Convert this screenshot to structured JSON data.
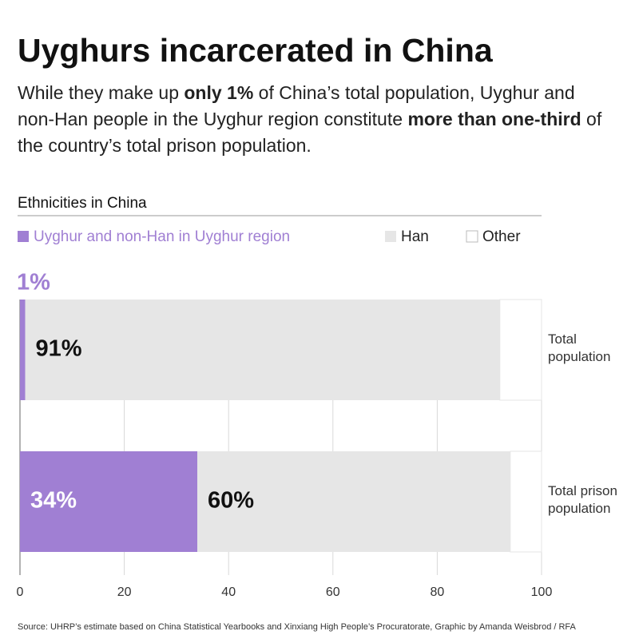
{
  "chart_data": {
    "type": "stacked_barh",
    "title": "Uyghurs incarcerated in China",
    "subtitle": [
      {
        "text": "While they make up ",
        "bold": false
      },
      {
        "text": "only 1%",
        "bold": true
      },
      {
        "text": " of China’s total population, Uyghur and non-Han people in the Uyghur region constitute ",
        "bold": false
      },
      {
        "text": "more than one-third",
        "bold": true
      },
      {
        "text": " of the country’s total prison population.",
        "bold": false
      }
    ],
    "section_label": "Ethnicities in China",
    "categories": [
      "Total population",
      "Total prison population"
    ],
    "series": [
      {
        "name": "Uyghur and non-Han in Uyghur region",
        "color": "#a07fd3",
        "values": [
          1,
          34
        ],
        "value_labels": [
          "1%",
          "34%"
        ]
      },
      {
        "name": "Han",
        "color": "#e6e6e6",
        "values": [
          91,
          60
        ],
        "value_labels": [
          "91%",
          "60%"
        ]
      },
      {
        "name": "Other",
        "color": "#ffffff",
        "values": [
          8,
          6
        ],
        "value_labels": [
          null,
          null
        ]
      }
    ],
    "xlim": [
      0,
      100
    ],
    "xticks": [
      0,
      20,
      40,
      60,
      80,
      100
    ],
    "grid": true,
    "source": "Source: UHRP’s estimate based on China Statistical Yearbooks and Xinxiang High People’s Procuratorate, Graphic by Amanda Weisbrod / RFA"
  }
}
